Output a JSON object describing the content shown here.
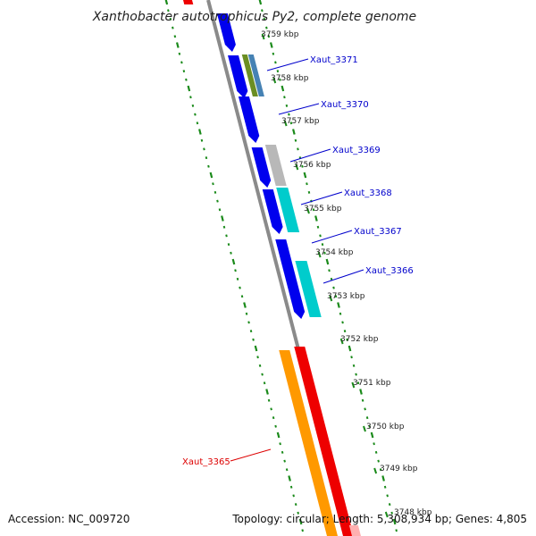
{
  "title": "Xanthobacter autotrophicus Py2, complete genome",
  "footer": {
    "accession": "Accession: NC_009720",
    "summary": "Topology: circular; Length: 5,308,934 bp; Genes: 4,805"
  },
  "colors": {
    "backbone": "#8a8a8a",
    "tick": "#1a8a1a",
    "label_blue": "#0000cc",
    "label_red": "#dd0000"
  },
  "kbp_ticks": [
    "3759 kbp",
    "3758 kbp",
    "3757 kbp",
    "3756 kbp",
    "3755 kbp",
    "3754 kbp",
    "3753 kbp",
    "3752 kbp",
    "3751 kbp",
    "3750 kbp",
    "3749 kbp",
    "3748 kbp"
  ],
  "gene_labels": [
    {
      "text": "Xaut_3371",
      "color": "#0000cc"
    },
    {
      "text": "Xaut_3370",
      "color": "#0000cc"
    },
    {
      "text": "Xaut_3369",
      "color": "#0000cc"
    },
    {
      "text": "Xaut_3368",
      "color": "#0000cc"
    },
    {
      "text": "Xaut_3367",
      "color": "#0000cc"
    },
    {
      "text": "Xaut_3366",
      "color": "#0000cc"
    },
    {
      "text": "Xaut_3365",
      "color": "#dd0000"
    }
  ],
  "feature_colors": {
    "blue": "#0000ee",
    "olive": "#6b8e23",
    "steel": "#4682b4",
    "gray": "#b8b8b8",
    "cyan": "#00cccc",
    "orange": "#ff9900",
    "red": "#ee0000",
    "pink": "#ffb0b0"
  }
}
